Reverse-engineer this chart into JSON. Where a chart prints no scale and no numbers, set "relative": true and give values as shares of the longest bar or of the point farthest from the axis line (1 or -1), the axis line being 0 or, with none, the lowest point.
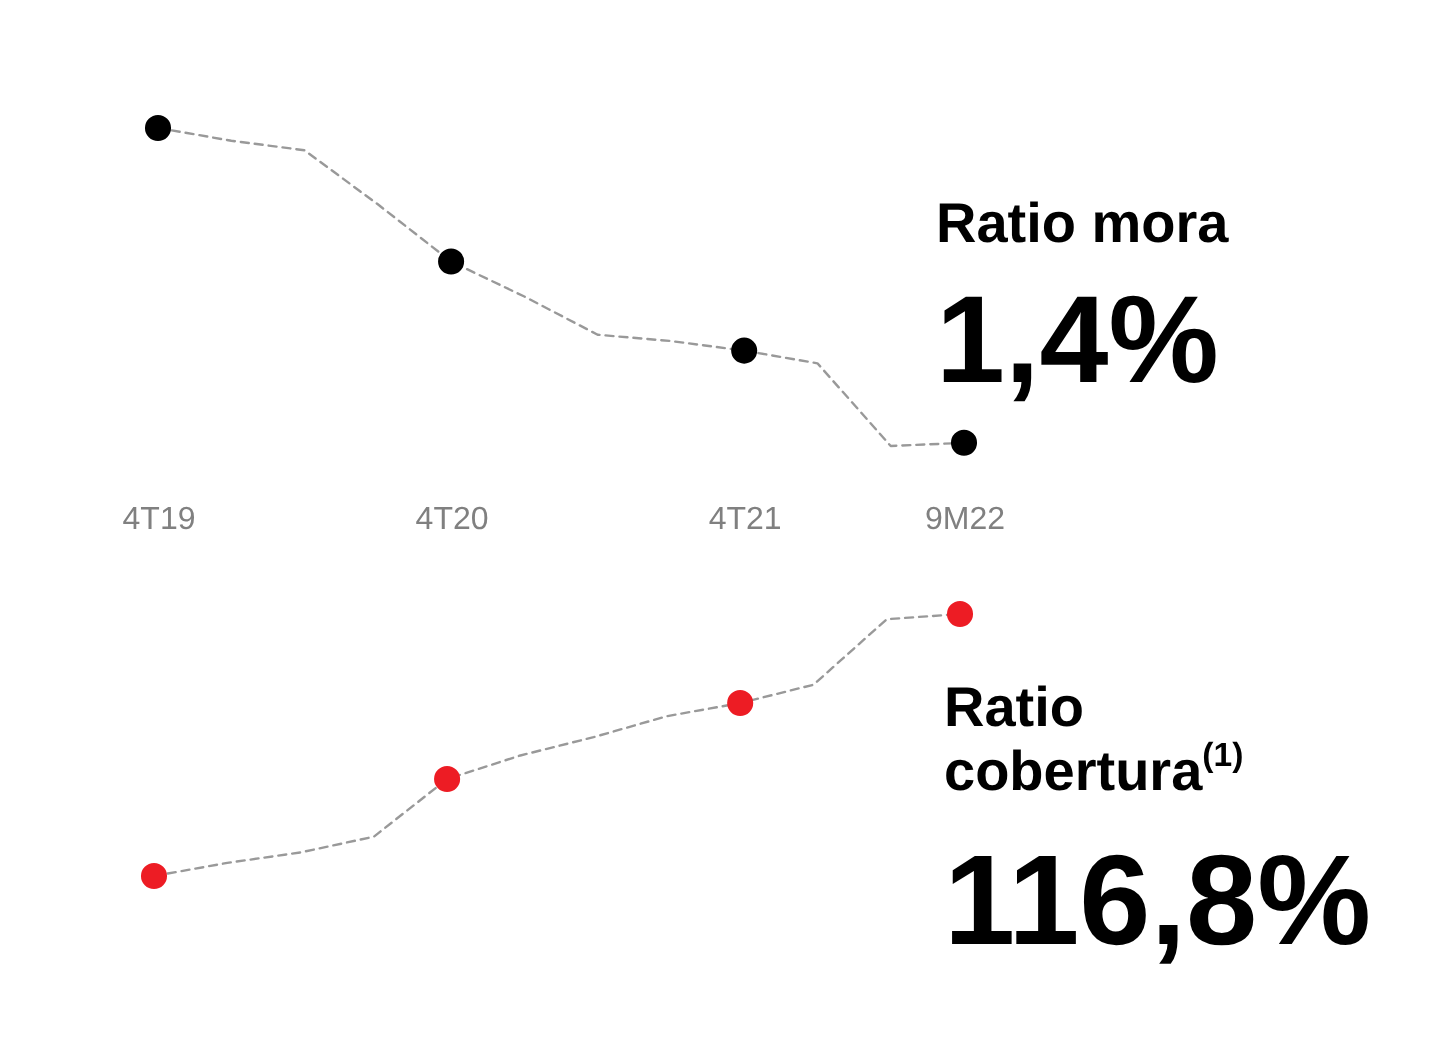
{
  "chart_data": [
    {
      "type": "line",
      "title": "Ratio mora",
      "annotations": [
        "1,4%"
      ],
      "relative": true,
      "categories": [
        "4T19",
        null,
        null,
        null,
        "4T20",
        null,
        null,
        null,
        "4T21",
        null,
        null,
        "9M22"
      ],
      "series": [
        {
          "color": "#999999",
          "line_style": "dashed",
          "marker": "none",
          "values": [
            1,
            0.96,
            0.93,
            0.76,
            0.58,
            0.47,
            0.35,
            0.33,
            0.3,
            0.26,
            0,
            0.01
          ]
        },
        {
          "type": "scatter",
          "color": "#000000",
          "marker": "circle",
          "values": [
            1,
            null,
            null,
            null,
            0.58,
            null,
            null,
            null,
            0.3,
            null,
            null,
            0.01
          ]
        }
      ]
    },
    {
      "type": "line",
      "title": "Ratio cobertura$^{(1)}$",
      "annotations": [
        "116,8%"
      ],
      "relative": true,
      "categories": [
        null,
        null,
        null,
        null,
        null,
        null,
        null,
        null,
        null,
        null,
        null,
        null
      ],
      "series": [
        {
          "color": "#999999",
          "line_style": "dashed",
          "marker": "none",
          "values": [
            0,
            0.05,
            0.09,
            0.15,
            0.37,
            0.46,
            0.53,
            0.61,
            0.66,
            0.73,
            0.98,
            1
          ]
        },
        {
          "type": "scatter",
          "color": "#ed1c24",
          "marker": "circle",
          "values": [
            0,
            null,
            null,
            null,
            0.37,
            null,
            null,
            null,
            0.66,
            null,
            null,
            1
          ]
        }
      ]
    }
  ]
}
